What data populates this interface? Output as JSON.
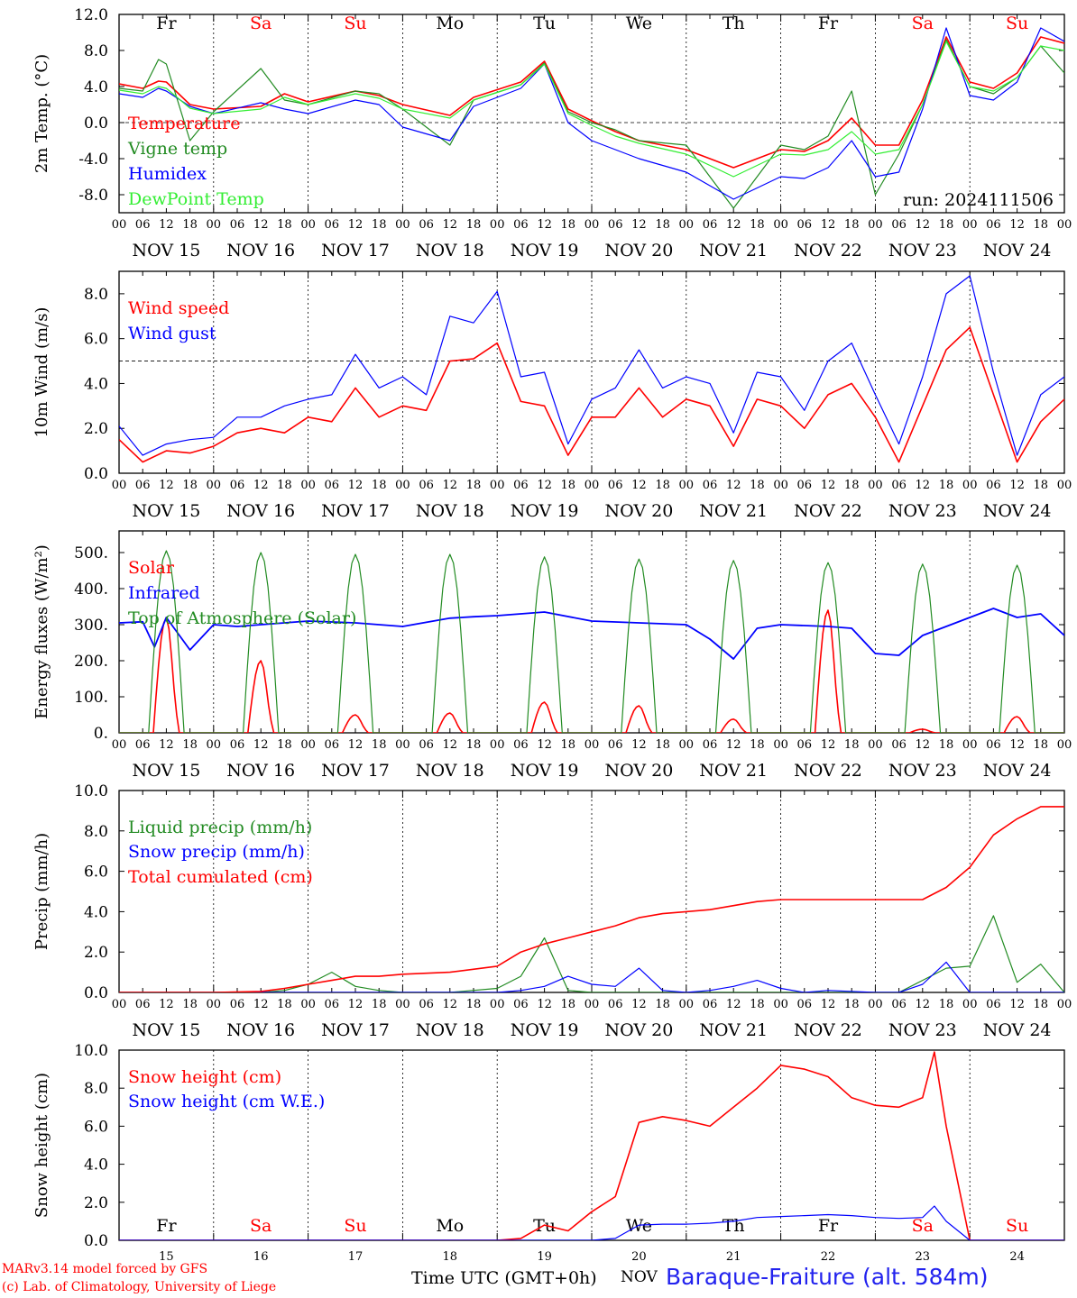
{
  "colors": {
    "red": "#ff0000",
    "green": "#228b22",
    "blue": "#0000ff",
    "lime": "#33ee33",
    "weekend": "#ff0000",
    "weekday": "#000000",
    "site": "#2222ee"
  },
  "days": {
    "weekday_labels": [
      "Fr",
      "Sa",
      "Su",
      "Mo",
      "Tu",
      "We",
      "Th",
      "Fr",
      "Sa",
      "Su"
    ],
    "weekend_flags": [
      false,
      true,
      true,
      false,
      false,
      false,
      false,
      false,
      true,
      true
    ],
    "date_labels": [
      "NOV 15",
      "NOV 16",
      "NOV 17",
      "NOV 18",
      "NOV 19",
      "NOV 20",
      "NOV 21",
      "NOV 22",
      "NOV 23",
      "NOV 24"
    ],
    "day_numbers": [
      "15",
      "16",
      "17",
      "18",
      "19",
      "20",
      "21",
      "22",
      "23",
      "24"
    ],
    "hour_ticks": [
      "00",
      "06",
      "12",
      "18"
    ],
    "last_tick": "00"
  },
  "footer": {
    "model": "MARv3.14 model forced by GFS",
    "lab": "(c) Lab. of Climatology, University of Liege",
    "xlabel": "Time UTC (GMT+0h)",
    "month": "NOV",
    "site": "Baraque-Fraiture (alt. 584m)"
  },
  "chart_data": [
    {
      "type": "line",
      "ylabel": "2m Temp. (°C)",
      "ylim": [
        -10,
        12
      ],
      "yticks": [
        "12.0",
        "8.0",
        "4.0",
        "0.0",
        "-4.0",
        "-8.0"
      ],
      "ytick_values": [
        12,
        8,
        4,
        0,
        -4,
        -8
      ],
      "ref_line": 0,
      "annotation": "run: 2024111506",
      "show_weekdays_top": true,
      "x_hours_from_nov15_00": [
        0,
        6,
        10,
        12,
        18,
        24,
        36,
        42,
        48,
        60,
        66,
        72,
        84,
        90,
        102,
        108,
        114,
        120,
        126,
        132,
        144,
        156,
        168,
        174,
        180,
        186,
        192,
        198,
        204,
        210,
        216,
        222,
        228,
        234,
        240
      ],
      "series": [
        {
          "name": "Temperature",
          "color": "red",
          "values": [
            4.3,
            3.8,
            4.6,
            4.5,
            2.0,
            1.5,
            1.8,
            3.2,
            2.3,
            3.5,
            3.0,
            2.0,
            0.8,
            2.8,
            4.5,
            6.8,
            1.5,
            0.2,
            -1.0,
            -2.0,
            -3.0,
            -5.0,
            -3.0,
            -3.2,
            -2.0,
            0.5,
            -2.5,
            -2.5,
            2.5,
            9.5,
            4.5,
            3.8,
            5.5,
            9.5,
            8.8
          ]
        },
        {
          "name": "Vigne temp",
          "color": "green",
          "values": [
            3.8,
            3.5,
            7.0,
            6.5,
            -2.0,
            1.2,
            6.0,
            2.5,
            2.0,
            3.5,
            3.2,
            1.5,
            -2.5,
            2.5,
            4.2,
            6.6,
            1.2,
            0.0,
            -0.8,
            -2.0,
            -2.5,
            -9.5,
            -2.5,
            -3.0,
            -1.5,
            3.5,
            -8.0,
            -3.5,
            2.0,
            9.2,
            4.0,
            3.2,
            5.0,
            8.5,
            5.5
          ]
        },
        {
          "name": "Humidex",
          "color": "blue",
          "values": [
            3.2,
            2.8,
            3.8,
            3.5,
            1.8,
            1.0,
            2.2,
            1.5,
            1.0,
            2.5,
            2.0,
            -0.5,
            -2.0,
            1.8,
            3.8,
            6.5,
            0.0,
            -2.0,
            -3.0,
            -4.0,
            -5.5,
            -8.5,
            -6.0,
            -6.2,
            -5.0,
            -2.0,
            -6.0,
            -5.5,
            1.5,
            10.5,
            3.0,
            2.5,
            4.5,
            10.5,
            9.0
          ]
        },
        {
          "name": "DewPoint Temp",
          "color": "lime",
          "values": [
            3.6,
            3.2,
            4.0,
            3.8,
            1.6,
            1.0,
            1.5,
            2.8,
            2.0,
            3.2,
            2.7,
            1.5,
            0.5,
            2.5,
            4.2,
            6.5,
            1.0,
            -0.3,
            -1.5,
            -2.3,
            -3.5,
            -6.0,
            -3.5,
            -3.6,
            -3.0,
            -1.0,
            -3.5,
            -3.0,
            2.0,
            9.0,
            4.0,
            3.5,
            5.0,
            8.5,
            8.0
          ]
        }
      ]
    },
    {
      "type": "line",
      "ylabel": "10m Wind (m/s)",
      "ylim": [
        0,
        9
      ],
      "yticks": [
        "8.0",
        "6.0",
        "4.0",
        "2.0",
        "0.0"
      ],
      "ytick_values": [
        8,
        6,
        4,
        2,
        0
      ],
      "ref_line": 5,
      "annotation": "",
      "show_weekdays_top": false,
      "x_hours_from_nov15_00": [
        0,
        6,
        12,
        18,
        24,
        30,
        36,
        42,
        48,
        54,
        60,
        66,
        72,
        78,
        84,
        90,
        96,
        102,
        108,
        114,
        120,
        126,
        132,
        138,
        144,
        150,
        156,
        162,
        168,
        174,
        180,
        186,
        192,
        198,
        204,
        210,
        216,
        222,
        228,
        234,
        240
      ],
      "series": [
        {
          "name": "Wind speed",
          "color": "red",
          "values": [
            1.5,
            0.5,
            1.0,
            0.9,
            1.2,
            1.8,
            2.0,
            1.8,
            2.5,
            2.3,
            3.8,
            2.5,
            3.0,
            2.8,
            5.0,
            5.1,
            5.8,
            3.2,
            3.0,
            0.8,
            2.5,
            2.5,
            3.8,
            2.5,
            3.3,
            3.0,
            1.2,
            3.3,
            3.0,
            2.0,
            3.5,
            4.0,
            2.5,
            0.5,
            3.0,
            5.5,
            6.5,
            3.5,
            0.5,
            2.3,
            3.3
          ]
        },
        {
          "name": "Wind gust",
          "color": "blue",
          "values": [
            2.1,
            0.8,
            1.3,
            1.5,
            1.6,
            2.5,
            2.5,
            3.0,
            3.3,
            3.5,
            5.3,
            3.8,
            4.3,
            3.5,
            7.0,
            6.7,
            8.1,
            4.3,
            4.5,
            1.3,
            3.3,
            3.8,
            5.5,
            3.8,
            4.3,
            4.0,
            1.8,
            4.5,
            4.3,
            2.8,
            5.0,
            5.8,
            3.5,
            1.3,
            4.3,
            8.0,
            8.8,
            4.5,
            0.8,
            3.5,
            4.3
          ]
        }
      ]
    },
    {
      "type": "line",
      "ylabel": "Energy fluxes (W/m²)",
      "ylim": [
        0,
        560
      ],
      "yticks": [
        "500.",
        "400.",
        "300.",
        "200.",
        "100.",
        "0."
      ],
      "ytick_values": [
        500,
        400,
        300,
        200,
        100,
        0
      ],
      "ref_line": null,
      "annotation": "",
      "show_weekdays_top": false,
      "diurnal": {
        "sunrise_hour": 7.5,
        "sunset_hour": 16.5,
        "toa_peak": [
          505,
          500,
          495,
          495,
          488,
          482,
          478,
          472,
          468,
          465
        ],
        "solar_peak": [
          320,
          200,
          50,
          55,
          85,
          75,
          38,
          340,
          10,
          45
        ]
      },
      "x_hours_from_nov15_00": [
        0,
        6,
        9,
        12,
        18,
        24,
        30,
        36,
        42,
        48,
        60,
        66,
        72,
        84,
        90,
        96,
        108,
        120,
        132,
        144,
        150,
        156,
        162,
        168,
        180,
        186,
        192,
        198,
        204,
        210,
        216,
        222,
        228,
        234,
        240
      ],
      "series": [
        {
          "name": "Solar",
          "color": "red",
          "values": []
        },
        {
          "name": "Infrared",
          "color": "blue",
          "values": [
            305,
            308,
            238,
            320,
            230,
            300,
            295,
            300,
            305,
            310,
            305,
            300,
            295,
            318,
            322,
            325,
            335,
            310,
            305,
            300,
            260,
            205,
            290,
            300,
            295,
            290,
            220,
            215,
            270,
            295,
            320,
            345,
            320,
            330,
            270
          ]
        },
        {
          "name": "Top of Atmosphere (Solar)",
          "color": "green",
          "values": []
        }
      ]
    },
    {
      "type": "line",
      "ylabel": "Precip (mm/h)",
      "ylim": [
        0,
        10
      ],
      "yticks": [
        "10.0",
        "8.0",
        "6.0",
        "4.0",
        "2.0",
        "0.0"
      ],
      "ytick_values": [
        10,
        8,
        6,
        4,
        2,
        0
      ],
      "ref_line": null,
      "annotation": "",
      "show_weekdays_top": false,
      "x_hours_from_nov15_00": [
        0,
        24,
        36,
        42,
        48,
        54,
        60,
        66,
        72,
        84,
        96,
        102,
        108,
        114,
        120,
        126,
        132,
        138,
        144,
        150,
        156,
        162,
        168,
        174,
        180,
        192,
        198,
        204,
        210,
        216,
        222,
        228,
        234,
        240
      ],
      "series": [
        {
          "name": "Liquid precip (mm/h)",
          "color": "green",
          "values": [
            0,
            0,
            0,
            0.1,
            0.4,
            1.0,
            0.3,
            0.1,
            0,
            0,
            0.2,
            0.8,
            2.7,
            0.1,
            0,
            0,
            0,
            0,
            0,
            0,
            0,
            0,
            0,
            0,
            0,
            0,
            0,
            0.6,
            1.2,
            1.3,
            3.8,
            0.5,
            1.4,
            0
          ]
        },
        {
          "name": "Snow precip (mm/h)",
          "color": "blue",
          "values": [
            0,
            0,
            0,
            0,
            0,
            0,
            0,
            0,
            0,
            0,
            0,
            0.1,
            0.3,
            0.8,
            0.4,
            0.3,
            1.2,
            0.1,
            0,
            0.1,
            0.3,
            0.6,
            0.2,
            0,
            0.1,
            0,
            0,
            0.4,
            1.5,
            0,
            0,
            0,
            0,
            0
          ]
        },
        {
          "name": "Total cumulated (cm)",
          "color": "red",
          "values": [
            0,
            0,
            0.05,
            0.2,
            0.4,
            0.6,
            0.8,
            0.8,
            0.9,
            1.0,
            1.3,
            2.0,
            2.4,
            2.7,
            3.0,
            3.3,
            3.7,
            3.9,
            4.0,
            4.1,
            4.3,
            4.5,
            4.6,
            4.6,
            4.6,
            4.6,
            4.6,
            4.6,
            5.2,
            6.2,
            7.8,
            8.6,
            9.2,
            9.2
          ]
        }
      ]
    },
    {
      "type": "line",
      "ylabel": "Snow height (cm)",
      "ylim": [
        0,
        10
      ],
      "yticks": [
        "10.0",
        "8.0",
        "6.0",
        "4.0",
        "2.0",
        "0.0"
      ],
      "ytick_values": [
        10,
        8,
        6,
        4,
        2,
        0
      ],
      "ref_line": null,
      "annotation": "",
      "show_weekdays_bottom": true,
      "x_hours_from_nov15_00": [
        0,
        96,
        102,
        108,
        114,
        120,
        126,
        132,
        138,
        144,
        150,
        156,
        162,
        168,
        174,
        180,
        186,
        192,
        198,
        204,
        207,
        210,
        216,
        222,
        240
      ],
      "series": [
        {
          "name": "Snow height (cm)",
          "color": "red",
          "values": [
            0,
            0,
            0.1,
            0.8,
            0.5,
            1.5,
            2.3,
            6.2,
            6.5,
            6.3,
            6.0,
            7.0,
            8.0,
            9.2,
            9.0,
            8.6,
            7.5,
            7.1,
            7.0,
            7.5,
            9.9,
            6.0,
            0,
            0,
            0
          ]
        },
        {
          "name": "Snow height (cm W.E.)",
          "color": "blue",
          "values": [
            0,
            0,
            0,
            0,
            0,
            0,
            0.1,
            0.8,
            0.85,
            0.85,
            0.9,
            1.0,
            1.2,
            1.25,
            1.3,
            1.35,
            1.3,
            1.2,
            1.15,
            1.2,
            1.8,
            1.0,
            0,
            0,
            0
          ]
        }
      ]
    }
  ]
}
